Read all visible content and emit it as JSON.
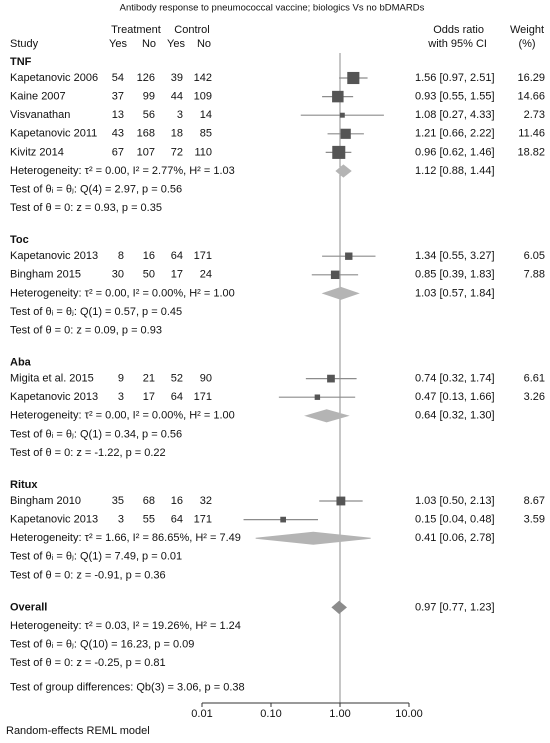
{
  "chart_data": {
    "type": "forest",
    "title": "Antibody response to pneumococcal vaccine; biologics Vs no bDMARDs",
    "columns": {
      "study": "Study",
      "treatment": "Treatment",
      "control": "Control",
      "subheaders": [
        "Yes",
        "No",
        "Yes",
        "No"
      ],
      "effect": [
        "Odds ratio",
        "with 95% CI"
      ],
      "weight": [
        "Weight",
        "(%)"
      ]
    },
    "groups": [
      {
        "name": "TNF",
        "studies": [
          {
            "study": "Kapetanovic 2006",
            "counts": [
              54,
              126,
              39,
              142
            ],
            "or": 1.56,
            "lo": 0.97,
            "hi": 2.51,
            "ci_label": "1.56 [0.97, 2.51]",
            "weight": 16.29
          },
          {
            "study": "Kaine 2007",
            "counts": [
              37,
              99,
              44,
              109
            ],
            "or": 0.93,
            "lo": 0.55,
            "hi": 1.55,
            "ci_label": "0.93 [0.55, 1.55]",
            "weight": 14.66
          },
          {
            "study": "Visvanathan",
            "counts": [
              13,
              56,
              3,
              14
            ],
            "or": 1.08,
            "lo": 0.27,
            "hi": 4.33,
            "ci_label": "1.08 [0.27, 4.33]",
            "weight": 2.73
          },
          {
            "study": "Kapetanovic 2011",
            "counts": [
              43,
              168,
              18,
              85
            ],
            "or": 1.21,
            "lo": 0.66,
            "hi": 2.22,
            "ci_label": "1.21 [0.66, 2.22]",
            "weight": 11.46
          },
          {
            "study": "Kivitz 2014",
            "counts": [
              67,
              107,
              72,
              110
            ],
            "or": 0.96,
            "lo": 0.62,
            "hi": 1.46,
            "ci_label": "0.96 [0.62, 1.46]",
            "weight": 18.82
          }
        ],
        "summary": {
          "or": 1.12,
          "lo": 0.88,
          "hi": 1.44,
          "ci_label": "1.12 [0.88, 1.44]"
        },
        "heterogeneity": "Heterogeneity: τ² = 0.00, I² = 2.77%, H² = 1.03",
        "test_homogeneity": "Test of θᵢ = θⱼ: Q(4) = 2.97, p = 0.56",
        "test_effect": "Test of θ = 0: z = 0.93, p = 0.35"
      },
      {
        "name": "Toc",
        "studies": [
          {
            "study": "Kapetanovic 2013",
            "counts": [
              8,
              16,
              64,
              171
            ],
            "or": 1.34,
            "lo": 0.55,
            "hi": 3.27,
            "ci_label": "1.34 [0.55, 3.27]",
            "weight": 6.05
          },
          {
            "study": "Bingham 2015",
            "counts": [
              30,
              50,
              17,
              24
            ],
            "or": 0.85,
            "lo": 0.39,
            "hi": 1.83,
            "ci_label": "0.85 [0.39, 1.83]",
            "weight": 7.88
          }
        ],
        "summary": {
          "or": 1.03,
          "lo": 0.57,
          "hi": 1.84,
          "ci_label": "1.03 [0.57, 1.84]"
        },
        "heterogeneity": "Heterogeneity: τ² = 0.00, I² = 0.00%, H² = 1.00",
        "test_homogeneity": "Test of θᵢ = θⱼ: Q(1) = 0.57, p = 0.45",
        "test_effect": "Test of θ = 0: z = 0.09, p = 0.93"
      },
      {
        "name": "Aba",
        "studies": [
          {
            "study": "Migita et al. 2015",
            "counts": [
              9,
              21,
              52,
              90
            ],
            "or": 0.74,
            "lo": 0.32,
            "hi": 1.74,
            "ci_label": "0.74 [0.32, 1.74]",
            "weight": 6.61
          },
          {
            "study": "Kapetanovic 2013",
            "counts": [
              3,
              17,
              64,
              171
            ],
            "or": 0.47,
            "lo": 0.13,
            "hi": 1.66,
            "ci_label": "0.47 [0.13, 1.66]",
            "weight": 3.26
          }
        ],
        "summary": {
          "or": 0.64,
          "lo": 0.32,
          "hi": 1.3,
          "ci_label": "0.64 [0.32, 1.30]"
        },
        "heterogeneity": "Heterogeneity: τ² = 0.00, I² = 0.00%, H² = 1.00",
        "test_homogeneity": "Test of θᵢ = θⱼ: Q(1) = 0.34, p = 0.56",
        "test_effect": "Test of θ = 0: z = -1.22, p = 0.22"
      },
      {
        "name": "Ritux",
        "studies": [
          {
            "study": "Bingham 2010",
            "counts": [
              35,
              68,
              16,
              32
            ],
            "or": 1.03,
            "lo": 0.5,
            "hi": 2.13,
            "ci_label": "1.03 [0.50, 2.13]",
            "weight": 8.67
          },
          {
            "study": "Kapetanovic 2013",
            "counts": [
              3,
              55,
              64,
              171
            ],
            "or": 0.15,
            "lo": 0.04,
            "hi": 0.48,
            "ci_label": "0.15 [0.04, 0.48]",
            "weight": 3.59
          }
        ],
        "summary": {
          "or": 0.41,
          "lo": 0.06,
          "hi": 2.78,
          "ci_label": "0.41 [0.06, 2.78]"
        },
        "heterogeneity": "Heterogeneity: τ² = 1.66, I² = 86.65%, H² = 7.49",
        "test_homogeneity": "Test of θᵢ = θⱼ: Q(1) = 7.49, p = 0.01",
        "test_effect": "Test of θ = 0: z = -0.91, p = 0.36"
      }
    ],
    "overall": {
      "name": "Overall",
      "summary": {
        "or": 0.97,
        "lo": 0.77,
        "hi": 1.23,
        "ci_label": "0.97 [0.77, 1.23]"
      },
      "heterogeneity": "Heterogeneity: τ² = 0.03, I² = 19.26%, H² = 1.24",
      "test_homogeneity": "Test of θᵢ = θⱼ: Q(10) = 16.23, p = 0.09",
      "test_effect": "Test of θ = 0: z = -0.25, p = 0.81"
    },
    "group_test": "Test of group differences: Qb(3) = 3.06, p = 0.38",
    "footnote": "Random-effects REML model",
    "log_scale": true,
    "xlim": [
      0.01,
      10
    ],
    "xticks": [
      {
        "value": 0.01,
        "label": "0.01"
      },
      {
        "value": 0.1,
        "label": "0.10"
      },
      {
        "value": 1,
        "label": "1.00"
      },
      {
        "value": 10,
        "label": "10.00"
      }
    ],
    "null_value": 1,
    "colors": {
      "marker": "#555555",
      "ci": "#8c8c8c",
      "diamond": "#b4b4b4",
      "overall_diamond": "#8c8c8c",
      "null_line": "#8c8c8c"
    }
  }
}
